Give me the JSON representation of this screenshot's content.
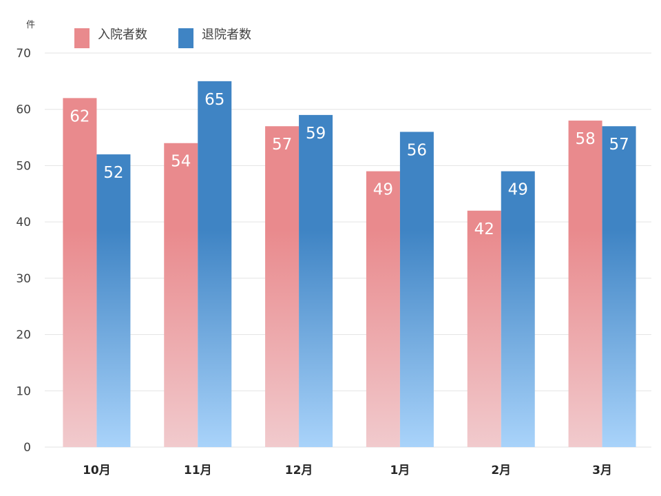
{
  "chart_data": {
    "type": "bar",
    "unit_label": "件",
    "categories": [
      "10月",
      "11月",
      "12月",
      "1月",
      "2月",
      "3月"
    ],
    "series": [
      {
        "name": "入院者数",
        "values": [
          62,
          54,
          57,
          49,
          42,
          58
        ],
        "color_top": "#e98a8d",
        "color_bottom": "#f1cacd"
      },
      {
        "name": "退院者数",
        "values": [
          52,
          65,
          59,
          56,
          49,
          57
        ],
        "color_top": "#3f84c4",
        "color_bottom": "#a9d3fa"
      }
    ],
    "ylim": [
      0,
      70
    ],
    "yticks": [
      0,
      10,
      20,
      30,
      40,
      50,
      60,
      70
    ],
    "grid": true,
    "legend_position": "top-left",
    "data_labels": true
  }
}
